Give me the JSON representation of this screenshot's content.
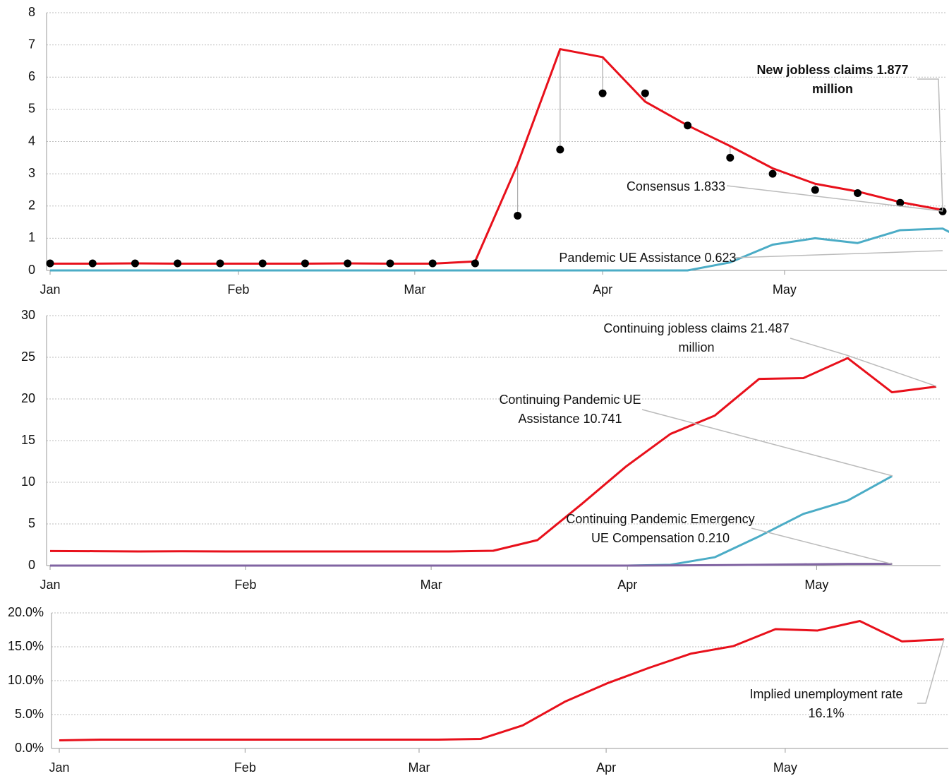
{
  "chart_data": [
    {
      "type": "line",
      "xlim": [
        0,
        21
      ],
      "xticks": [
        {
          "value": 0,
          "label": "Jan"
        },
        {
          "value": 4.43,
          "label": "Feb"
        },
        {
          "value": 8.58,
          "label": "Mar"
        },
        {
          "value": 13,
          "label": "Apr"
        },
        {
          "value": 17.28,
          "label": "May"
        }
      ],
      "ylim": [
        0,
        8
      ],
      "yticks": [
        0,
        1,
        2,
        3,
        4,
        5,
        6,
        7,
        8
      ],
      "grid": true,
      "series": [
        {
          "style": "line",
          "color": "#e8101b",
          "values": [
            0.21,
            0.21,
            0.22,
            0.21,
            0.21,
            0.21,
            0.21,
            0.22,
            0.21,
            0.21,
            0.28,
            3.3,
            6.87,
            6.62,
            5.24,
            4.5,
            3.86,
            3.17,
            2.69,
            2.45,
            2.12,
            1.877
          ]
        },
        {
          "style": "markers",
          "color": "#000000",
          "values": [
            0.22,
            0.22,
            0.22,
            0.22,
            0.22,
            0.22,
            0.22,
            0.22,
            0.22,
            0.22,
            0.22,
            1.7,
            3.75,
            5.5,
            5.5,
            4.5,
            3.5,
            3.0,
            2.5,
            2.4,
            2.1,
            1.833
          ]
        },
        {
          "style": "line",
          "color": "#4bacc6",
          "values": [
            0,
            0,
            0,
            0,
            0,
            0,
            0,
            0,
            0,
            0,
            0,
            0,
            0,
            0,
            0,
            0,
            0.25,
            0.8,
            1.0,
            0.85,
            1.25,
            1.3,
            0.623
          ]
        }
      ],
      "annotations": [
        {
          "lines": [
            "New jobless claims 1.877",
            "million"
          ],
          "color": "#e8101b",
          "bold": true
        },
        {
          "lines": [
            "Consensus 1.833"
          ],
          "color": "#111111",
          "bold": false
        },
        {
          "lines": [
            "Pandemic UE Assistance 0.623"
          ],
          "color": "#4bacc6",
          "bold": false
        }
      ]
    },
    {
      "type": "line",
      "xlim": [
        0,
        20
      ],
      "xticks": [
        {
          "value": 0,
          "label": "Jan"
        },
        {
          "value": 4.41,
          "label": "Feb"
        },
        {
          "value": 8.6,
          "label": "Mar"
        },
        {
          "value": 13.03,
          "label": "Apr"
        },
        {
          "value": 17.3,
          "label": "May"
        }
      ],
      "ylim": [
        0,
        30
      ],
      "yticks": [
        0,
        5,
        10,
        15,
        20,
        25,
        30
      ],
      "grid": true,
      "series": [
        {
          "style": "line",
          "color": "#e8101b",
          "values": [
            1.75,
            1.73,
            1.7,
            1.72,
            1.7,
            1.7,
            1.7,
            1.7,
            1.7,
            1.7,
            1.78,
            3.06,
            7.4,
            11.9,
            15.8,
            18.0,
            22.4,
            22.5,
            24.9,
            20.8,
            21.487
          ]
        },
        {
          "style": "line",
          "color": "#4bacc6",
          "values": [
            0,
            0,
            0,
            0,
            0,
            0,
            0,
            0,
            0,
            0,
            0,
            0,
            0,
            0,
            0.1,
            1.0,
            3.5,
            6.2,
            7.8,
            10.741,
            null
          ]
        },
        {
          "style": "line",
          "color": "#8064a2",
          "values": [
            0,
            0,
            0,
            0,
            0,
            0,
            0,
            0,
            0,
            0,
            0,
            0,
            0,
            0,
            0.02,
            0.05,
            0.1,
            0.15,
            0.2,
            0.21,
            null
          ]
        }
      ],
      "annotations": [
        {
          "lines": [
            "Continuing jobless claims 21.487",
            "million"
          ],
          "color": "#111111",
          "bold": false
        },
        {
          "lines": [
            "Continuing Pandemic UE",
            "Assistance 10.741"
          ],
          "color": "#4bacc6",
          "bold": false
        },
        {
          "lines": [
            "Continuing Pandemic Emergency",
            "UE Compensation 0.210"
          ],
          "color": "#8064a2",
          "bold": false
        }
      ]
    },
    {
      "type": "line",
      "xlim": [
        0,
        21
      ],
      "xticks": [
        {
          "value": 0,
          "label": "Jan"
        },
        {
          "value": 4.41,
          "label": "Feb"
        },
        {
          "value": 8.54,
          "label": "Mar"
        },
        {
          "value": 12.98,
          "label": "Apr"
        },
        {
          "value": 17.23,
          "label": "May"
        }
      ],
      "ylim": [
        0,
        20
      ],
      "yticks": [
        {
          "value": 0,
          "label": "0.0%"
        },
        {
          "value": 5,
          "label": "5.0%"
        },
        {
          "value": 10,
          "label": "10.0%"
        },
        {
          "value": 15,
          "label": "15.0%"
        },
        {
          "value": 20,
          "label": "20.0%"
        }
      ],
      "grid": true,
      "series": [
        {
          "style": "line",
          "color": "#e8101b",
          "values": [
            1.2,
            1.3,
            1.3,
            1.3,
            1.3,
            1.3,
            1.3,
            1.3,
            1.3,
            1.3,
            1.4,
            3.4,
            6.9,
            9.6,
            11.9,
            14.0,
            15.1,
            17.6,
            17.4,
            18.8,
            15.8,
            16.1
          ]
        }
      ],
      "annotations": [
        {
          "lines": [
            "Implied unemployment rate",
            "16.1%"
          ],
          "color": "#111111",
          "bold": false
        }
      ]
    }
  ]
}
